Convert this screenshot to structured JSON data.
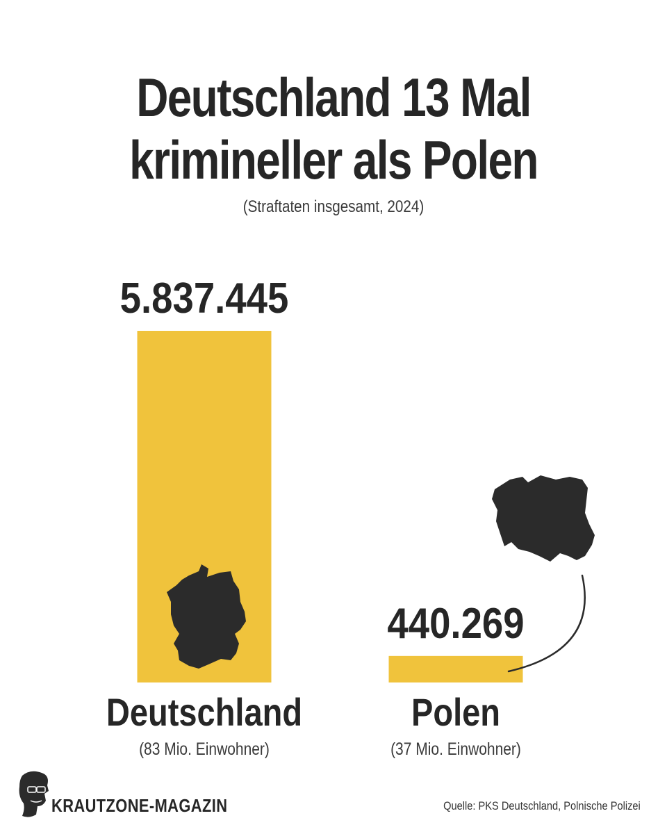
{
  "title_lines": [
    "Deutschland 13 Mal",
    "krimineller als Polen"
  ],
  "subtitle": "(Straftaten insgesamt, 2024)",
  "colors": {
    "bar": "#F0C33C",
    "text": "#262626",
    "silhouette": "#2b2b2b"
  },
  "chart_data": {
    "type": "bar",
    "title": "Deutschland 13 Mal krimineller als Polen",
    "subtitle": "(Straftaten insgesamt, 2024)",
    "categories": [
      "Deutschland",
      "Polen"
    ],
    "values": [
      5837445,
      440269
    ],
    "value_labels": [
      "5.837.445",
      "440.269"
    ],
    "category_notes": [
      "(83 Mio. Einwohner)",
      "(37 Mio. Einwohner)"
    ],
    "icons": [
      "germany-map-silhouette",
      "poland-map-silhouette"
    ],
    "xlabel": "",
    "ylabel": "",
    "ylim": [
      0,
      5837445
    ],
    "grid": false
  },
  "footer": {
    "brand": "KRAUTZONE-MAGAZIN",
    "logo_icon": "face-with-sunglasses-silhouette",
    "source": "Quelle: PKS Deutschland, Polnische Polizei"
  }
}
